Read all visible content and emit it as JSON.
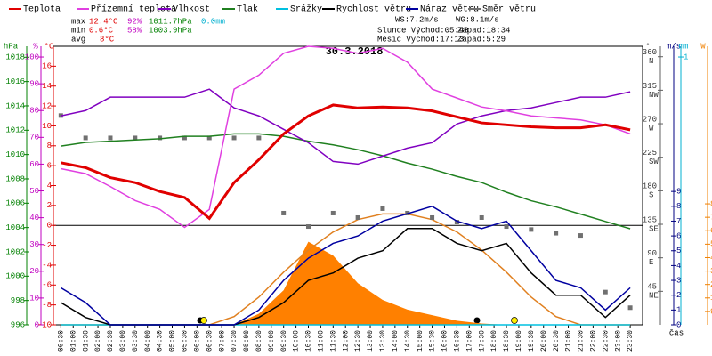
{
  "chart_data": {
    "type": "line",
    "title": "30.3.2018",
    "xlabel": "čas",
    "xlim": [
      0.2,
      24
    ],
    "x": [
      0.5,
      1.5,
      2.5,
      3.5,
      4.5,
      5.5,
      6.5,
      7.5,
      8.5,
      9.5,
      10.5,
      11.5,
      12.5,
      13.5,
      14.5,
      15.5,
      16.5,
      17.5,
      18.5,
      19.5,
      20.5,
      21.5,
      22.5,
      23.5
    ],
    "xticks": [
      {
        "value": 0.5,
        "label": "00:30"
      },
      {
        "value": 1,
        "label": "01:00"
      },
      {
        "value": 1.5,
        "label": "01:30"
      },
      {
        "value": 2,
        "label": "02:00"
      },
      {
        "value": 2.5,
        "label": "02:30"
      },
      {
        "value": 3,
        "label": "03:00"
      },
      {
        "value": 3.5,
        "label": "03:30"
      },
      {
        "value": 4,
        "label": "04:00"
      },
      {
        "value": 4.5,
        "label": "04:30"
      },
      {
        "value": 5,
        "label": "05:00"
      },
      {
        "value": 5.5,
        "label": "05:30"
      },
      {
        "value": 6,
        "label": "06:00"
      },
      {
        "value": 6.5,
        "label": "06:30"
      },
      {
        "value": 7,
        "label": "07:00"
      },
      {
        "value": 7.5,
        "label": "07:30"
      },
      {
        "value": 8,
        "label": "08:00"
      },
      {
        "value": 8.5,
        "label": "08:30"
      },
      {
        "value": 9,
        "label": "09:00"
      },
      {
        "value": 9.5,
        "label": "09:30"
      },
      {
        "value": 10,
        "label": "10:00"
      },
      {
        "value": 10.5,
        "label": "10:30"
      },
      {
        "value": 11,
        "label": "11:00"
      },
      {
        "value": 11.5,
        "label": "11:30"
      },
      {
        "value": 12,
        "label": "12:00"
      },
      {
        "value": 12.5,
        "label": "12:30"
      },
      {
        "value": 13,
        "label": "13:00"
      },
      {
        "value": 13.5,
        "label": "13:30"
      },
      {
        "value": 14,
        "label": "14:00"
      },
      {
        "value": 14.5,
        "label": "14:30"
      },
      {
        "value": 15,
        "label": "15:00"
      },
      {
        "value": 15.5,
        "label": "15:30"
      },
      {
        "value": 16,
        "label": "16:00"
      },
      {
        "value": 16.5,
        "label": "16:30"
      },
      {
        "value": 17,
        "label": "17:00"
      },
      {
        "value": 17.5,
        "label": "17:30"
      },
      {
        "value": 18,
        "label": "18:00"
      },
      {
        "value": 18.5,
        "label": "18:30"
      },
      {
        "value": 19,
        "label": "19:00"
      },
      {
        "value": 19.5,
        "label": "19:30"
      },
      {
        "value": 20,
        "label": "20:00"
      },
      {
        "value": 20.5,
        "label": "20:30"
      },
      {
        "value": 21,
        "label": "21:00"
      },
      {
        "value": 21.5,
        "label": "21:30"
      },
      {
        "value": 22,
        "label": "22:00"
      },
      {
        "value": 22.5,
        "label": "22:30"
      },
      {
        "value": 23,
        "label": "23:00"
      },
      {
        "value": 23.5,
        "label": "23:30"
      }
    ],
    "axes": [
      {
        "label": "hPa",
        "color": "#008000",
        "lim": [
          996,
          1018.9
        ],
        "ticks": [
          996,
          998,
          1000,
          1002,
          1004,
          1006,
          1008,
          1010,
          1012,
          1014,
          1016,
          1018
        ]
      },
      {
        "label": "%",
        "color": "#c000c0",
        "lim": [
          0,
          104
        ],
        "ticks": [
          0,
          10,
          20,
          30,
          40,
          50,
          60,
          70,
          80,
          90,
          100
        ]
      },
      {
        "label": "°C",
        "color": "#e00000",
        "lim": [
          -10,
          18
        ],
        "ticks": [
          -10,
          -8,
          -6,
          -4,
          -2,
          0,
          2,
          4,
          6,
          8,
          10,
          12,
          14,
          16
        ]
      },
      {
        "label": "°",
        "color": "#606060",
        "lim": [
          0,
          374
        ],
        "ticks": [
          45,
          90,
          135,
          180,
          225,
          270,
          315,
          360
        ],
        "compass": [
          "NE",
          "E",
          "SE",
          "S",
          "SW",
          "W",
          "NW",
          "N"
        ]
      },
      {
        "label": "m/s",
        "color": "#000080",
        "lim": [
          0,
          18.8
        ],
        "ticks": [
          0,
          1,
          2,
          3,
          4,
          5,
          6,
          7,
          8,
          9
        ]
      },
      {
        "label": "mm",
        "color": "#00b0d0",
        "lim": [
          0,
          1.04
        ],
        "ticks": [
          1
        ]
      },
      {
        "label": "W",
        "color": "#f08000",
        "lim": [
          0,
          2010
        ],
        "ticks": [
          97,
          194,
          291,
          388,
          485,
          582,
          679,
          776,
          873
        ]
      }
    ],
    "series": [
      {
        "type": "area",
        "axis": 6,
        "color": "#ff8000",
        "values": [
          0,
          0,
          0,
          0,
          0,
          0,
          0,
          0,
          80,
          250,
          600,
          500,
          300,
          180,
          110,
          70,
          30,
          10,
          0,
          0,
          0,
          0,
          0,
          0
        ]
      },
      {
        "type": "line",
        "axis": 6,
        "color": "#e08020",
        "values": [
          0,
          0,
          0,
          0,
          0,
          0,
          0,
          60,
          200,
          380,
          540,
          670,
          760,
          800,
          800,
          760,
          670,
          540,
          380,
          200,
          60,
          0,
          0,
          0
        ]
      },
      {
        "name": "Směr větru",
        "type": "scatter",
        "axis": 3,
        "color": "#707070",
        "values": [
          281,
          251,
          251,
          251,
          251,
          251,
          251,
          251,
          251,
          150,
          132,
          150,
          144,
          156,
          150,
          144,
          138,
          144,
          132,
          128,
          123,
          120,
          44,
          23
        ]
      },
      {
        "name": "Tlak",
        "type": "line",
        "axis": 0,
        "color": "#208020",
        "values": [
          1010.7,
          1011.0,
          1011.1,
          1011.2,
          1011.3,
          1011.5,
          1011.5,
          1011.7,
          1011.7,
          1011.5,
          1011.1,
          1010.8,
          1010.4,
          1009.9,
          1009.3,
          1008.8,
          1008.2,
          1007.7,
          1006.9,
          1006.2,
          1005.7,
          1005.1,
          1004.5,
          1003.9
        ]
      },
      {
        "name": "Vlhkost",
        "type": "line",
        "axis": 1,
        "color": "#8000c0",
        "values": [
          78,
          80,
          85,
          85,
          85,
          85,
          88,
          81,
          78,
          73,
          68,
          61,
          60,
          63,
          66,
          68,
          75,
          78,
          80,
          81,
          83,
          85,
          85,
          87
        ]
      },
      {
        "name": "Přízemní teplota",
        "type": "line",
        "axis": 2,
        "color": "#e040e0",
        "values": [
          5.7,
          5.2,
          3.9,
          2.5,
          1.6,
          -0.2,
          1.6,
          13.7,
          15.1,
          17.3,
          18,
          17.8,
          17.3,
          17.8,
          16.4,
          13.7,
          12.8,
          11.9,
          11.5,
          11.0,
          10.8,
          10.6,
          10.1,
          9.2
        ]
      },
      {
        "name": "Teplota",
        "type": "line",
        "axis": 2,
        "color": "#e00000",
        "width": 3,
        "values": [
          6.3,
          5.8,
          4.8,
          4.3,
          3.4,
          2.8,
          0.7,
          4.3,
          6.6,
          9.2,
          11.0,
          12.1,
          11.8,
          11.9,
          11.8,
          11.5,
          10.9,
          10.3,
          10.1,
          9.9,
          9.8,
          9.8,
          10.1,
          9.6
        ]
      },
      {
        "name": "Srážky",
        "type": "line",
        "axis": 5,
        "color": "#00c0e0",
        "values": [
          0,
          0,
          0,
          0,
          0,
          0,
          0,
          0,
          0,
          0,
          0,
          0,
          0,
          0,
          0,
          0,
          0,
          0,
          0,
          0,
          0,
          0,
          0,
          0
        ]
      },
      {
        "name": "Rychlost větru",
        "type": "line",
        "axis": 4,
        "color": "#000000",
        "values": [
          1.5,
          0.5,
          0,
          0,
          0,
          0,
          0,
          0,
          0.5,
          1.5,
          3,
          3.5,
          4.5,
          5,
          6.5,
          6.5,
          5.5,
          5,
          5.5,
          3.5,
          2,
          2,
          0.5,
          2
        ]
      },
      {
        "name": "Náraz větru",
        "type": "line",
        "axis": 4,
        "color": "#0000a0",
        "values": [
          2.5,
          1.5,
          0,
          0,
          0,
          0,
          0,
          0,
          1,
          3,
          4.5,
          5.5,
          6,
          7,
          7.5,
          8,
          7,
          6.5,
          7,
          5,
          3,
          2.5,
          1,
          2.5
        ]
      }
    ],
    "legend_order": [
      6,
      5,
      4,
      3,
      7,
      8,
      9,
      2
    ],
    "annotations": [
      {
        "text": "max",
        "color": "#000000"
      },
      {
        "text": "12.4°C",
        "color": "#e00000"
      },
      {
        "text": "92%",
        "color": "#c000c0"
      },
      {
        "text": "1011.7hPa",
        "color": "#008000"
      },
      {
        "text": "0.0mm",
        "color": "#00b0d0"
      },
      {
        "text": "min",
        "color": "#000000"
      },
      {
        "text": "0.6°C",
        "color": "#e00000"
      },
      {
        "text": "58%",
        "color": "#c000c0"
      },
      {
        "text": "1003.9hPa",
        "color": "#008000"
      },
      {
        "text": "avg",
        "color": "#000000"
      },
      {
        "text": "8°C",
        "color": "#e00000"
      },
      {
        "text": "WS:7.2m/s",
        "color": "#000000"
      },
      {
        "text": "WG:8.1m/s",
        "color": "#000000"
      },
      {
        "text": "Slunce Východ:05:48",
        "color": "#000000"
      },
      {
        "text": "Západ:18:34",
        "color": "#000000"
      },
      {
        "text": "Měsíc Východ:17:13",
        "color": "#000000"
      },
      {
        "text": "Západ:5:29",
        "color": "#000000"
      }
    ]
  }
}
